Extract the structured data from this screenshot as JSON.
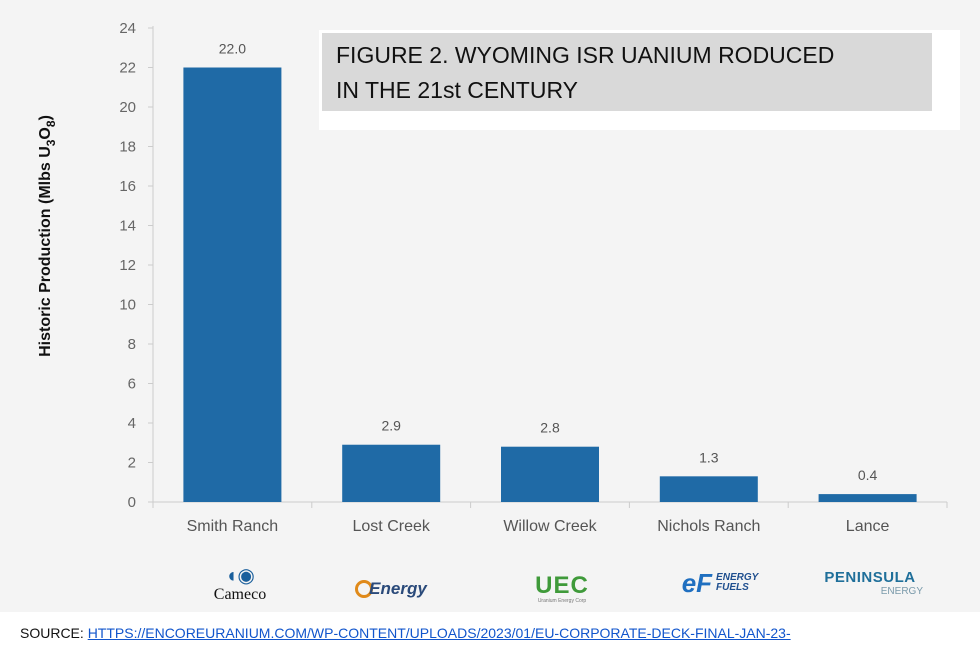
{
  "chart_data": {
    "type": "bar",
    "title": "FIGURE 2. WYOMING ISR UANIUM RODUCED IN THE 21st CENTURY",
    "title_lines": [
      "FIGURE 2. WYOMING ISR UANIUM RODUCED",
      "IN THE 21st CENTURY"
    ],
    "ylabel": "Historic Production (Mlbs U3O8)",
    "ylabel_parts": {
      "prefix": "Historic Production (Mlbs U",
      "sub1": "3",
      "mid": "O",
      "sub2": "8",
      "suffix": ")"
    },
    "xlabel": "",
    "categories": [
      "Smith Ranch",
      "Lost Creek",
      "Willow Creek",
      "Nichols Ranch",
      "Lance"
    ],
    "values": [
      22.0,
      2.9,
      2.8,
      1.3,
      0.4
    ],
    "data_labels": [
      "22.0",
      "2.9",
      "2.8",
      "1.3",
      "0.4"
    ],
    "yticks": [
      0,
      2,
      4,
      6,
      8,
      10,
      12,
      14,
      16,
      18,
      20,
      22,
      24
    ],
    "ylim": [
      0,
      24
    ],
    "grid": false,
    "bar_color": "#1f6aa6"
  },
  "logos": [
    {
      "name": "Cameco",
      "icon": "cameco-wave-icon",
      "text": "Cameco"
    },
    {
      "name": "Ur-Energy",
      "icon": "ur-energy-ring-icon",
      "text": "Energy"
    },
    {
      "name": "UEC",
      "icon": "uec-wordmark",
      "text": "UEC",
      "sub": "Uranium Energy Corp"
    },
    {
      "name": "Energy Fuels",
      "icon": "energy-fuels-ef-icon",
      "mark": "eF",
      "text1": "ENERGY",
      "text2": "FUELS"
    },
    {
      "name": "Peninsula Energy",
      "icon": "peninsula-wave-icon",
      "text": "PENINSULA",
      "sub": "ENERGY"
    }
  ],
  "source": {
    "label": "SOURCE: ",
    "url": "HTTPS://ENCOREURANIUM.COM/WP-CONTENT/UPLOADS/2023/01/EU-CORPORATE-DECK-FINAL-JAN-23-"
  }
}
